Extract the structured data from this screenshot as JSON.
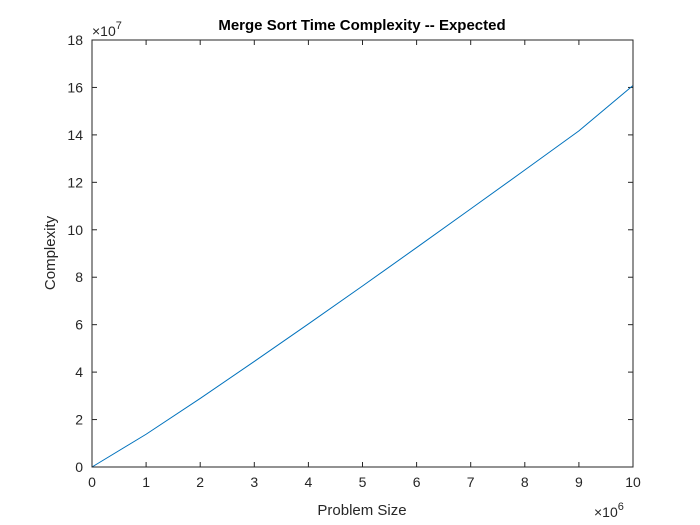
{
  "chart_data": {
    "type": "line",
    "title": "Merge Sort Time Complexity -- Expected",
    "xlabel": "Problem Size",
    "ylabel": "Complexity",
    "xlim": [
      0,
      10
    ],
    "ylim": [
      0,
      18
    ],
    "x_ticks": [
      "0",
      "1",
      "2",
      "3",
      "4",
      "5",
      "6",
      "7",
      "8",
      "9",
      "10"
    ],
    "y_ticks": [
      "0",
      "2",
      "4",
      "6",
      "8",
      "10",
      "12",
      "14",
      "16",
      "18"
    ],
    "x_exponent": {
      "base": "×10",
      "power": "6"
    },
    "y_exponent": {
      "base": "×10",
      "power": "7"
    },
    "grid": false,
    "line_color": "#0072BD",
    "series": [
      {
        "x": [
          0,
          1,
          2,
          3,
          4,
          5,
          6,
          7,
          8,
          9,
          10
        ],
        "values": [
          0,
          1.38,
          2.89,
          4.45,
          6.03,
          7.63,
          9.25,
          10.88,
          12.52,
          14.17,
          16.08
        ]
      }
    ]
  }
}
